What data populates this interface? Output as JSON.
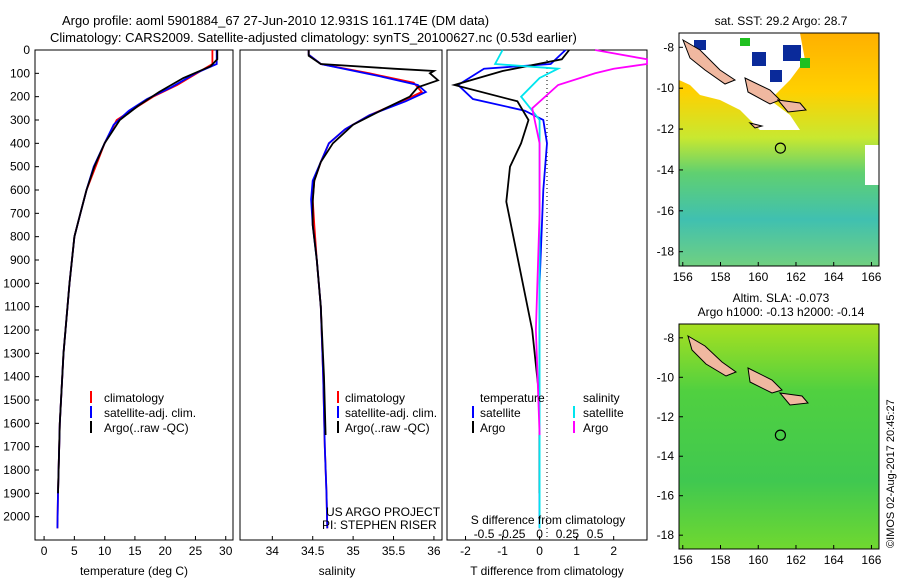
{
  "header": {
    "line1": "Argo profile: aoml 5901884_67 27-Jun-2010 12.931S 161.174E (DM data)",
    "line2": "Climatology: CARS2009. Satellite-adjusted climatology: synTS_20100627.nc (0.53d earlier)"
  },
  "colors": {
    "clim": "#ff0000",
    "sat": "#0000ff",
    "argo": "#000000",
    "sat_s": "#00e5ee",
    "argo_s": "#ff00ff"
  },
  "depth_axis": {
    "ylim": [
      0,
      2100
    ],
    "ticks": [
      0,
      100,
      200,
      300,
      400,
      500,
      600,
      700,
      800,
      900,
      1000,
      1100,
      1200,
      1300,
      1400,
      1500,
      1600,
      1700,
      1800,
      1900,
      2000
    ]
  },
  "legends": {
    "temp": [
      "climatology",
      "satellite-adj. clim.",
      "Argo(..raw -QC)"
    ],
    "sal": [
      "climatology",
      "satellite-adj. clim.",
      "Argo(..raw -QC)"
    ],
    "diff_temp_title": "temperature",
    "diff_sal_title": "salinity",
    "diff_temp": [
      "satellite",
      "Argo"
    ],
    "diff_sal": [
      "satellite",
      "Argo"
    ]
  },
  "credits": {
    "project": "US ARGO PROJECT",
    "pi": "PI: STEPHEN RISER"
  },
  "chart_data": [
    {
      "type": "line",
      "id": "temperature",
      "xlabel": "temperature (deg C)",
      "ylabel": "",
      "xlim": [
        -1.5,
        31.2
      ],
      "xticks": [
        0,
        5,
        10,
        15,
        20,
        25,
        30
      ],
      "xticklabels": [
        "0",
        "5",
        "10",
        "15",
        "20",
        "25",
        "30"
      ],
      "series": [
        {
          "name": "climatology",
          "color": "#ff0000",
          "x": [
            27.8,
            27.8,
            26.5,
            22,
            18,
            15,
            12,
            10,
            8.5,
            7,
            6,
            5,
            4.2,
            3.2,
            2.6,
            2.3,
            2.2
          ],
          "y": [
            0,
            60,
            80,
            150,
            200,
            250,
            300,
            400,
            500,
            600,
            700,
            800,
            1000,
            1300,
            1600,
            1900,
            2050
          ]
        },
        {
          "name": "satellite-adj. clim.",
          "color": "#0000ff",
          "x": [
            28.5,
            28.5,
            25,
            21,
            17,
            14,
            11.5,
            10,
            8.2,
            7,
            6,
            5,
            4.2,
            3.2,
            2.6,
            2.3,
            2.2
          ],
          "y": [
            0,
            60,
            100,
            160,
            210,
            260,
            320,
            400,
            500,
            600,
            700,
            800,
            1000,
            1300,
            1600,
            1900,
            2050
          ]
        },
        {
          "name": "Argo(..raw -QC)",
          "color": "#000000",
          "x": [
            28.6,
            28.6,
            27.5,
            23,
            19,
            15.5,
            12.5,
            10,
            8.3,
            7,
            6,
            5,
            4.2,
            3.2,
            2.6,
            2.3
          ],
          "y": [
            0,
            40,
            70,
            120,
            180,
            240,
            300,
            400,
            500,
            600,
            700,
            800,
            1000,
            1300,
            1600,
            1900
          ]
        }
      ]
    },
    {
      "type": "line",
      "id": "salinity",
      "xlabel": "salinity",
      "ylabel": "",
      "xlim": [
        33.6,
        36.1
      ],
      "xticks": [
        34,
        34.5,
        35,
        35.5,
        36
      ],
      "xticklabels": [
        "34",
        "34.5",
        "35",
        "35.5",
        "36"
      ],
      "series": [
        {
          "name": "climatology",
          "color": "#ff0000",
          "x": [
            34.45,
            34.45,
            34.6,
            35.2,
            35.75,
            35.85,
            35.6,
            35.2,
            34.9,
            34.7,
            34.6,
            34.52,
            34.5,
            34.52,
            34.55,
            34.6,
            34.63,
            34.65,
            34.67,
            34.68
          ],
          "y": [
            0,
            20,
            60,
            100,
            140,
            180,
            220,
            280,
            340,
            400,
            480,
            560,
            640,
            750,
            900,
            1100,
            1400,
            1700,
            1900,
            2050
          ]
        },
        {
          "name": "satellite-adj. clim.",
          "color": "#0000ff",
          "x": [
            34.45,
            34.45,
            34.6,
            35.3,
            35.8,
            35.9,
            35.65,
            35.2,
            34.9,
            34.7,
            34.6,
            34.5,
            34.48,
            34.5,
            34.55,
            34.6,
            34.63,
            34.65,
            34.67,
            34.68
          ],
          "y": [
            0,
            20,
            60,
            110,
            150,
            180,
            220,
            280,
            340,
            400,
            480,
            560,
            640,
            750,
            900,
            1100,
            1400,
            1700,
            1900,
            2050
          ]
        },
        {
          "name": "Argo(..raw -QC)",
          "color": "#000000",
          "x": [
            34.45,
            34.45,
            34.6,
            35.5,
            36.0,
            35.95,
            36.05,
            35.8,
            35.7,
            35.4,
            35.0,
            34.75,
            34.6,
            34.52,
            34.5,
            34.5,
            34.55,
            34.6,
            34.64,
            34.66
          ],
          "y": [
            0,
            25,
            60,
            80,
            90,
            100,
            130,
            160,
            200,
            250,
            320,
            400,
            480,
            560,
            650,
            750,
            900,
            1100,
            1400,
            1650
          ]
        }
      ]
    },
    {
      "type": "line",
      "id": "difference",
      "xlabel": "T difference from climatology",
      "ylabel": "",
      "x2label": "S difference from climatology",
      "xlim": [
        -2.5,
        2.9
      ],
      "xticks": [
        -2,
        -1,
        0,
        1,
        2
      ],
      "xticklabels": [
        "-2",
        "-1",
        "0",
        "1",
        "2"
      ],
      "x2ticks": [
        -1.5,
        -0.75,
        0,
        0.75,
        1.5
      ],
      "x2ticklabels": [
        "-0.5",
        "-0.25",
        "0",
        "0.25",
        "0.5"
      ],
      "series": [
        {
          "name": "temperature satellite",
          "color": "#0000ff",
          "x": [
            0.7,
            0.3,
            -1.5,
            -2.2,
            -1.8,
            -0.4,
            0.1,
            0.2,
            0.1,
            0,
            0,
            0
          ],
          "y": [
            0,
            60,
            80,
            150,
            210,
            260,
            300,
            400,
            600,
            1000,
            1500,
            2050
          ]
        },
        {
          "name": "temperature Argo",
          "color": "#000000",
          "x": [
            0.8,
            0.6,
            -1.0,
            -2.3,
            -0.6,
            -0.3,
            -0.5,
            -0.8,
            -0.9,
            -0.2,
            0,
            0
          ],
          "y": [
            0,
            40,
            90,
            150,
            220,
            300,
            400,
            500,
            650,
            1200,
            1500,
            1900
          ]
        },
        {
          "name": "salinity satellite",
          "color": "#00e5ee",
          "x": [
            -1.0,
            -1.2,
            0.5,
            0,
            -0.5,
            0,
            0,
            0,
            0,
            0
          ],
          "y": [
            0,
            60,
            80,
            120,
            200,
            300,
            500,
            1000,
            1500,
            2050
          ]
        },
        {
          "name": "salinity Argo",
          "color": "#ff00ff",
          "x": [
            1.5,
            2.9,
            2.9,
            2.0,
            1.5,
            0.5,
            -0.2,
            0,
            0,
            -0.1,
            0
          ],
          "y": [
            0,
            40,
            60,
            80,
            100,
            150,
            250,
            400,
            700,
            1200,
            1650
          ]
        }
      ]
    }
  ],
  "maps": {
    "sst": {
      "title": "sat. SST: 29.2  Argo: 28.7",
      "xticks": [
        "156",
        "158",
        "160",
        "162",
        "164",
        "166"
      ],
      "yticks": [
        "-8",
        "-10",
        "-12",
        "-14",
        "-16",
        "-18"
      ]
    },
    "sla": {
      "title1": "Altim. SLA: -0.073",
      "title2": "Argo h1000: -0.13 h2000: -0.14",
      "xticks": [
        "156",
        "158",
        "160",
        "162",
        "164",
        "166"
      ],
      "yticks": [
        "-8",
        "-10",
        "-12",
        "-14",
        "-16",
        "-18"
      ]
    },
    "lon_range": [
      155.8,
      166.4
    ],
    "lat_range": [
      -18.7,
      -7.3
    ],
    "argo_location": {
      "lon": 161.174,
      "lat": -12.931
    }
  },
  "footer": {
    "stamp": "©IMOS 02-Aug-2017 20:45:27"
  }
}
